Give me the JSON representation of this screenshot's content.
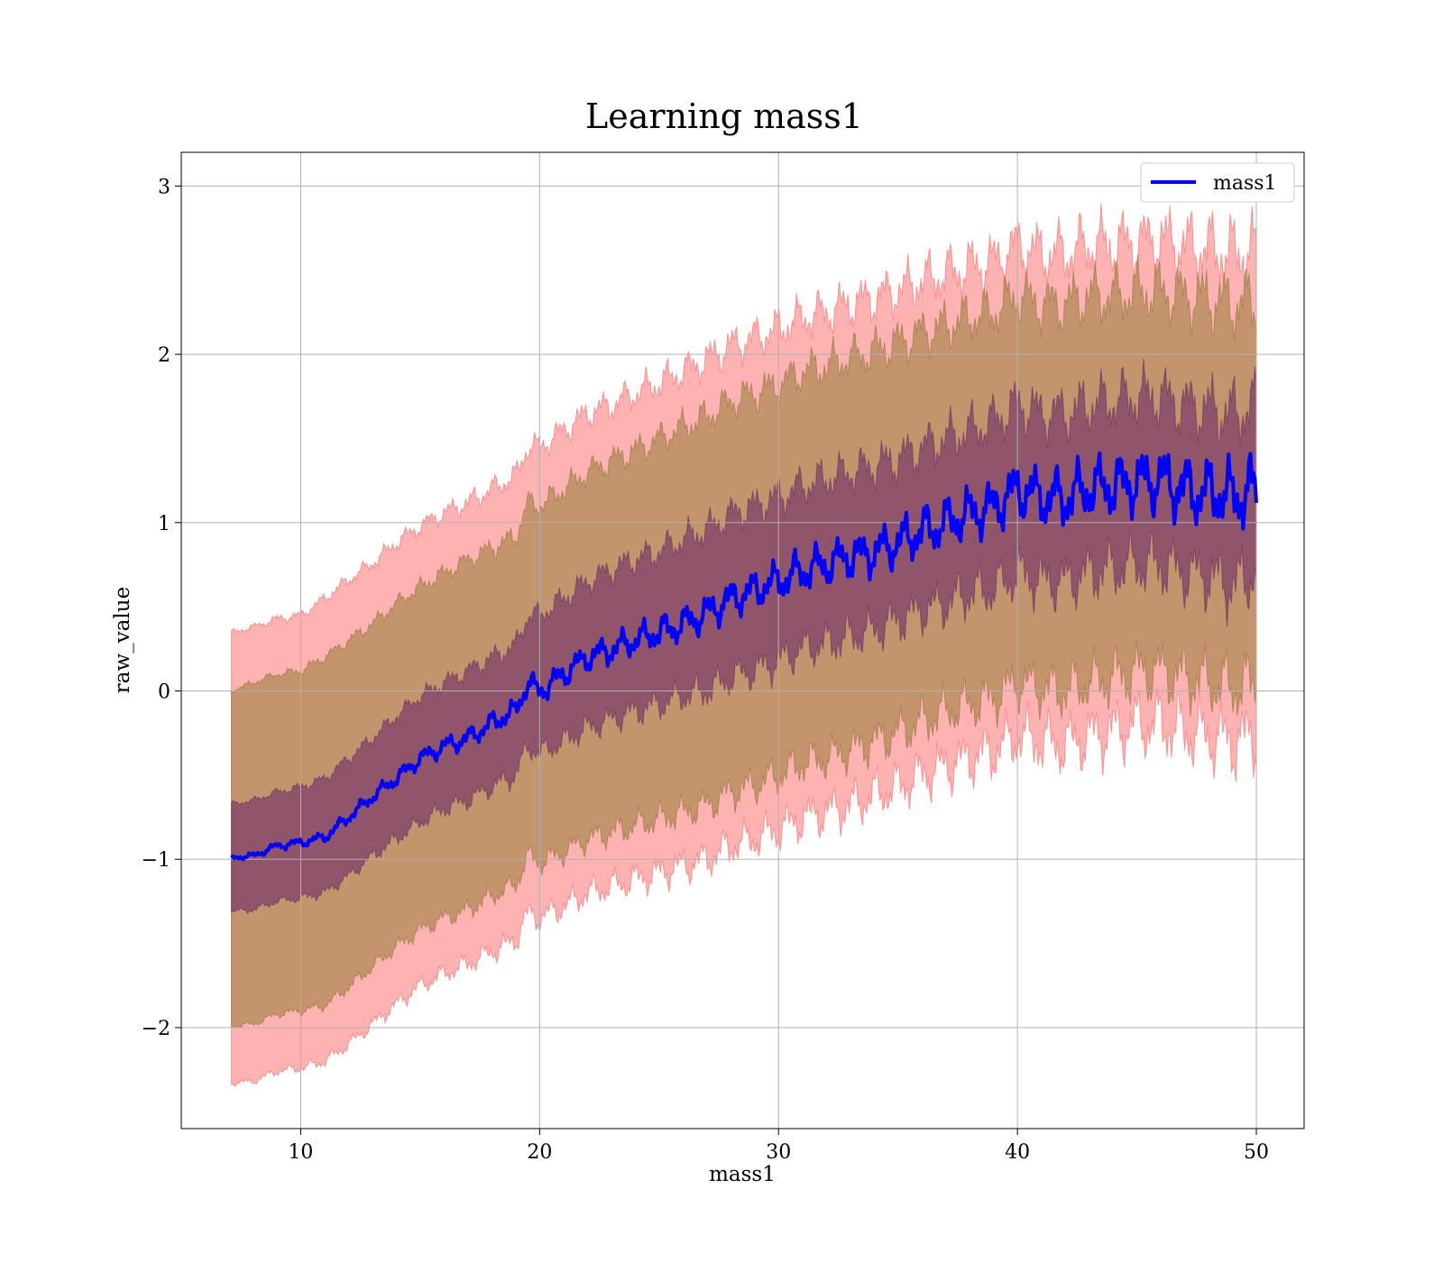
{
  "chart_data": {
    "type": "line",
    "title": "Learning mass1",
    "xlabel": "mass1",
    "ylabel": "raw_value",
    "xlim": [
      5,
      52
    ],
    "ylim": [
      -2.6,
      3.2
    ],
    "xticks": [
      10,
      20,
      30,
      40,
      50
    ],
    "yticks": [
      -2,
      -1,
      0,
      1,
      2,
      3
    ],
    "ytick_labels": [
      "−2",
      "−1",
      "0",
      "1",
      "2",
      "3"
    ],
    "grid": true,
    "legend_position": "top-right",
    "colors": {
      "line": "#0000ff",
      "band_outer": "#ff6666",
      "band_middle": "#b08a55",
      "band_inner": "#7a3a6a"
    },
    "series": [
      {
        "name": "mass1",
        "x": [
          7.1,
          8,
          9,
          10,
          11,
          12,
          13,
          14,
          15,
          16,
          17,
          18,
          19,
          19.5,
          20,
          21,
          22,
          23,
          24,
          25,
          26,
          27,
          28,
          29,
          30,
          31,
          32,
          33,
          34,
          35,
          36,
          37,
          38,
          39,
          40,
          41,
          42,
          43,
          44,
          45,
          46,
          47,
          48,
          49,
          50
        ],
        "y": [
          -0.99,
          -0.98,
          -0.92,
          -0.9,
          -0.87,
          -0.75,
          -0.63,
          -0.52,
          -0.4,
          -0.33,
          -0.28,
          -0.19,
          -0.12,
          0.05,
          0.0,
          0.1,
          0.2,
          0.25,
          0.3,
          0.35,
          0.4,
          0.46,
          0.55,
          0.6,
          0.65,
          0.72,
          0.75,
          0.8,
          0.83,
          0.88,
          0.95,
          1.0,
          1.05,
          1.1,
          1.2,
          1.15,
          1.15,
          1.2,
          1.22,
          1.25,
          1.25,
          1.2,
          1.18,
          1.15,
          1.2
        ],
        "band_inner": {
          "upper": [
            -0.67,
            -0.65,
            -0.6,
            -0.57,
            -0.52,
            -0.4,
            -0.28,
            -0.15,
            -0.03,
            0.05,
            0.12,
            0.2,
            0.27,
            0.45,
            0.45,
            0.55,
            0.65,
            0.72,
            0.78,
            0.83,
            0.9,
            0.96,
            1.05,
            1.1,
            1.15,
            1.22,
            1.26,
            1.3,
            1.34,
            1.38,
            1.45,
            1.5,
            1.55,
            1.6,
            1.7,
            1.65,
            1.65,
            1.7,
            1.72,
            1.75,
            1.75,
            1.7,
            1.68,
            1.65,
            1.7
          ],
          "lower": [
            -1.31,
            -1.3,
            -1.25,
            -1.23,
            -1.2,
            -1.1,
            -0.98,
            -0.88,
            -0.78,
            -0.7,
            -0.65,
            -0.57,
            -0.5,
            -0.33,
            -0.37,
            -0.3,
            -0.22,
            -0.17,
            -0.12,
            -0.08,
            -0.03,
            0.0,
            0.08,
            0.12,
            0.18,
            0.25,
            0.28,
            0.32,
            0.36,
            0.42,
            0.48,
            0.52,
            0.58,
            0.6,
            0.7,
            0.65,
            0.65,
            0.7,
            0.72,
            0.75,
            0.75,
            0.7,
            0.68,
            0.62,
            0.7
          ]
        },
        "band_middle": {
          "upper": [
            0.0,
            0.05,
            0.1,
            0.12,
            0.2,
            0.3,
            0.4,
            0.52,
            0.62,
            0.7,
            0.78,
            0.85,
            0.92,
            1.12,
            1.1,
            1.2,
            1.3,
            1.37,
            1.43,
            1.5,
            1.57,
            1.63,
            1.72,
            1.77,
            1.82,
            1.9,
            1.93,
            1.98,
            2.02,
            2.07,
            2.13,
            2.17,
            2.22,
            2.25,
            2.35,
            2.3,
            2.3,
            2.35,
            2.35,
            2.37,
            2.38,
            2.35,
            2.33,
            2.3,
            2.32
          ],
          "lower": [
            -1.99,
            -1.98,
            -1.92,
            -1.9,
            -1.87,
            -1.76,
            -1.64,
            -1.52,
            -1.42,
            -1.35,
            -1.3,
            -1.22,
            -1.15,
            -0.98,
            -1.02,
            -0.96,
            -0.88,
            -0.84,
            -0.8,
            -0.76,
            -0.72,
            -0.68,
            -0.6,
            -0.56,
            -0.5,
            -0.43,
            -0.4,
            -0.35,
            -0.3,
            -0.25,
            -0.18,
            -0.12,
            -0.08,
            -0.04,
            0.05,
            0.02,
            0.0,
            0.05,
            0.08,
            0.12,
            0.12,
            0.08,
            0.05,
            0.02,
            0.05
          ]
        },
        "band_outer": {
          "upper": [
            0.35,
            0.38,
            0.43,
            0.45,
            0.55,
            0.66,
            0.76,
            0.88,
            0.98,
            1.06,
            1.12,
            1.2,
            1.28,
            1.45,
            1.45,
            1.55,
            1.65,
            1.7,
            1.77,
            1.83,
            1.9,
            1.97,
            2.05,
            2.1,
            2.15,
            2.22,
            2.25,
            2.3,
            2.34,
            2.38,
            2.44,
            2.48,
            2.52,
            2.55,
            2.65,
            2.6,
            2.6,
            2.65,
            2.65,
            2.67,
            2.68,
            2.65,
            2.63,
            2.6,
            2.62
          ],
          "lower": [
            -2.33,
            -2.32,
            -2.26,
            -2.24,
            -2.2,
            -2.1,
            -1.98,
            -1.86,
            -1.75,
            -1.68,
            -1.62,
            -1.55,
            -1.48,
            -1.32,
            -1.35,
            -1.28,
            -1.2,
            -1.16,
            -1.12,
            -1.08,
            -1.04,
            -1.0,
            -0.92,
            -0.88,
            -0.82,
            -0.76,
            -0.72,
            -0.68,
            -0.62,
            -0.57,
            -0.5,
            -0.45,
            -0.4,
            -0.36,
            -0.27,
            -0.3,
            -0.32,
            -0.27,
            -0.24,
            -0.2,
            -0.2,
            -0.24,
            -0.27,
            -0.3,
            -0.27
          ]
        }
      }
    ]
  }
}
